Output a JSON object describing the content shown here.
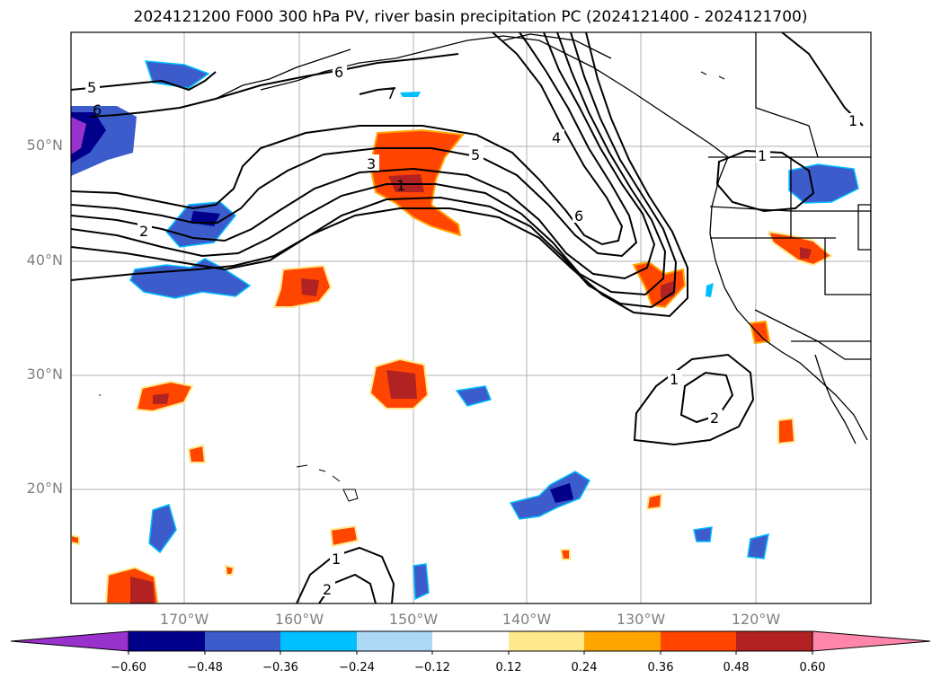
{
  "title": "2024121200 F000 300 hPa PV, river basin precipitation PC (2024121400 - 2024121700)",
  "map": {
    "lat_labels": [
      "50°N",
      "40°N",
      "30°N",
      "20°N"
    ],
    "lon_labels": [
      "170°W",
      "160°W",
      "150°W",
      "140°W",
      "130°W",
      "120°W"
    ],
    "grid": true,
    "pv_contour_labels": [
      "5",
      "6",
      "6",
      "7",
      "3",
      "5",
      "1",
      "2",
      "4",
      "6",
      "1",
      "1",
      "2",
      "1",
      "2",
      "1"
    ]
  },
  "colorbar": {
    "ticks": [
      "−0.60",
      "−0.48",
      "−0.36",
      "−0.24",
      "−0.12",
      "0.12",
      "0.24",
      "0.36",
      "0.48",
      "0.60"
    ],
    "colors": [
      "#9932cc",
      "#00008b",
      "#3c5ccc",
      "#00bfff",
      "#add8f5",
      "#ffffff",
      "#ffe98c",
      "#ffa500",
      "#ff4500",
      "#b22222",
      "#ff85aa"
    ]
  }
}
